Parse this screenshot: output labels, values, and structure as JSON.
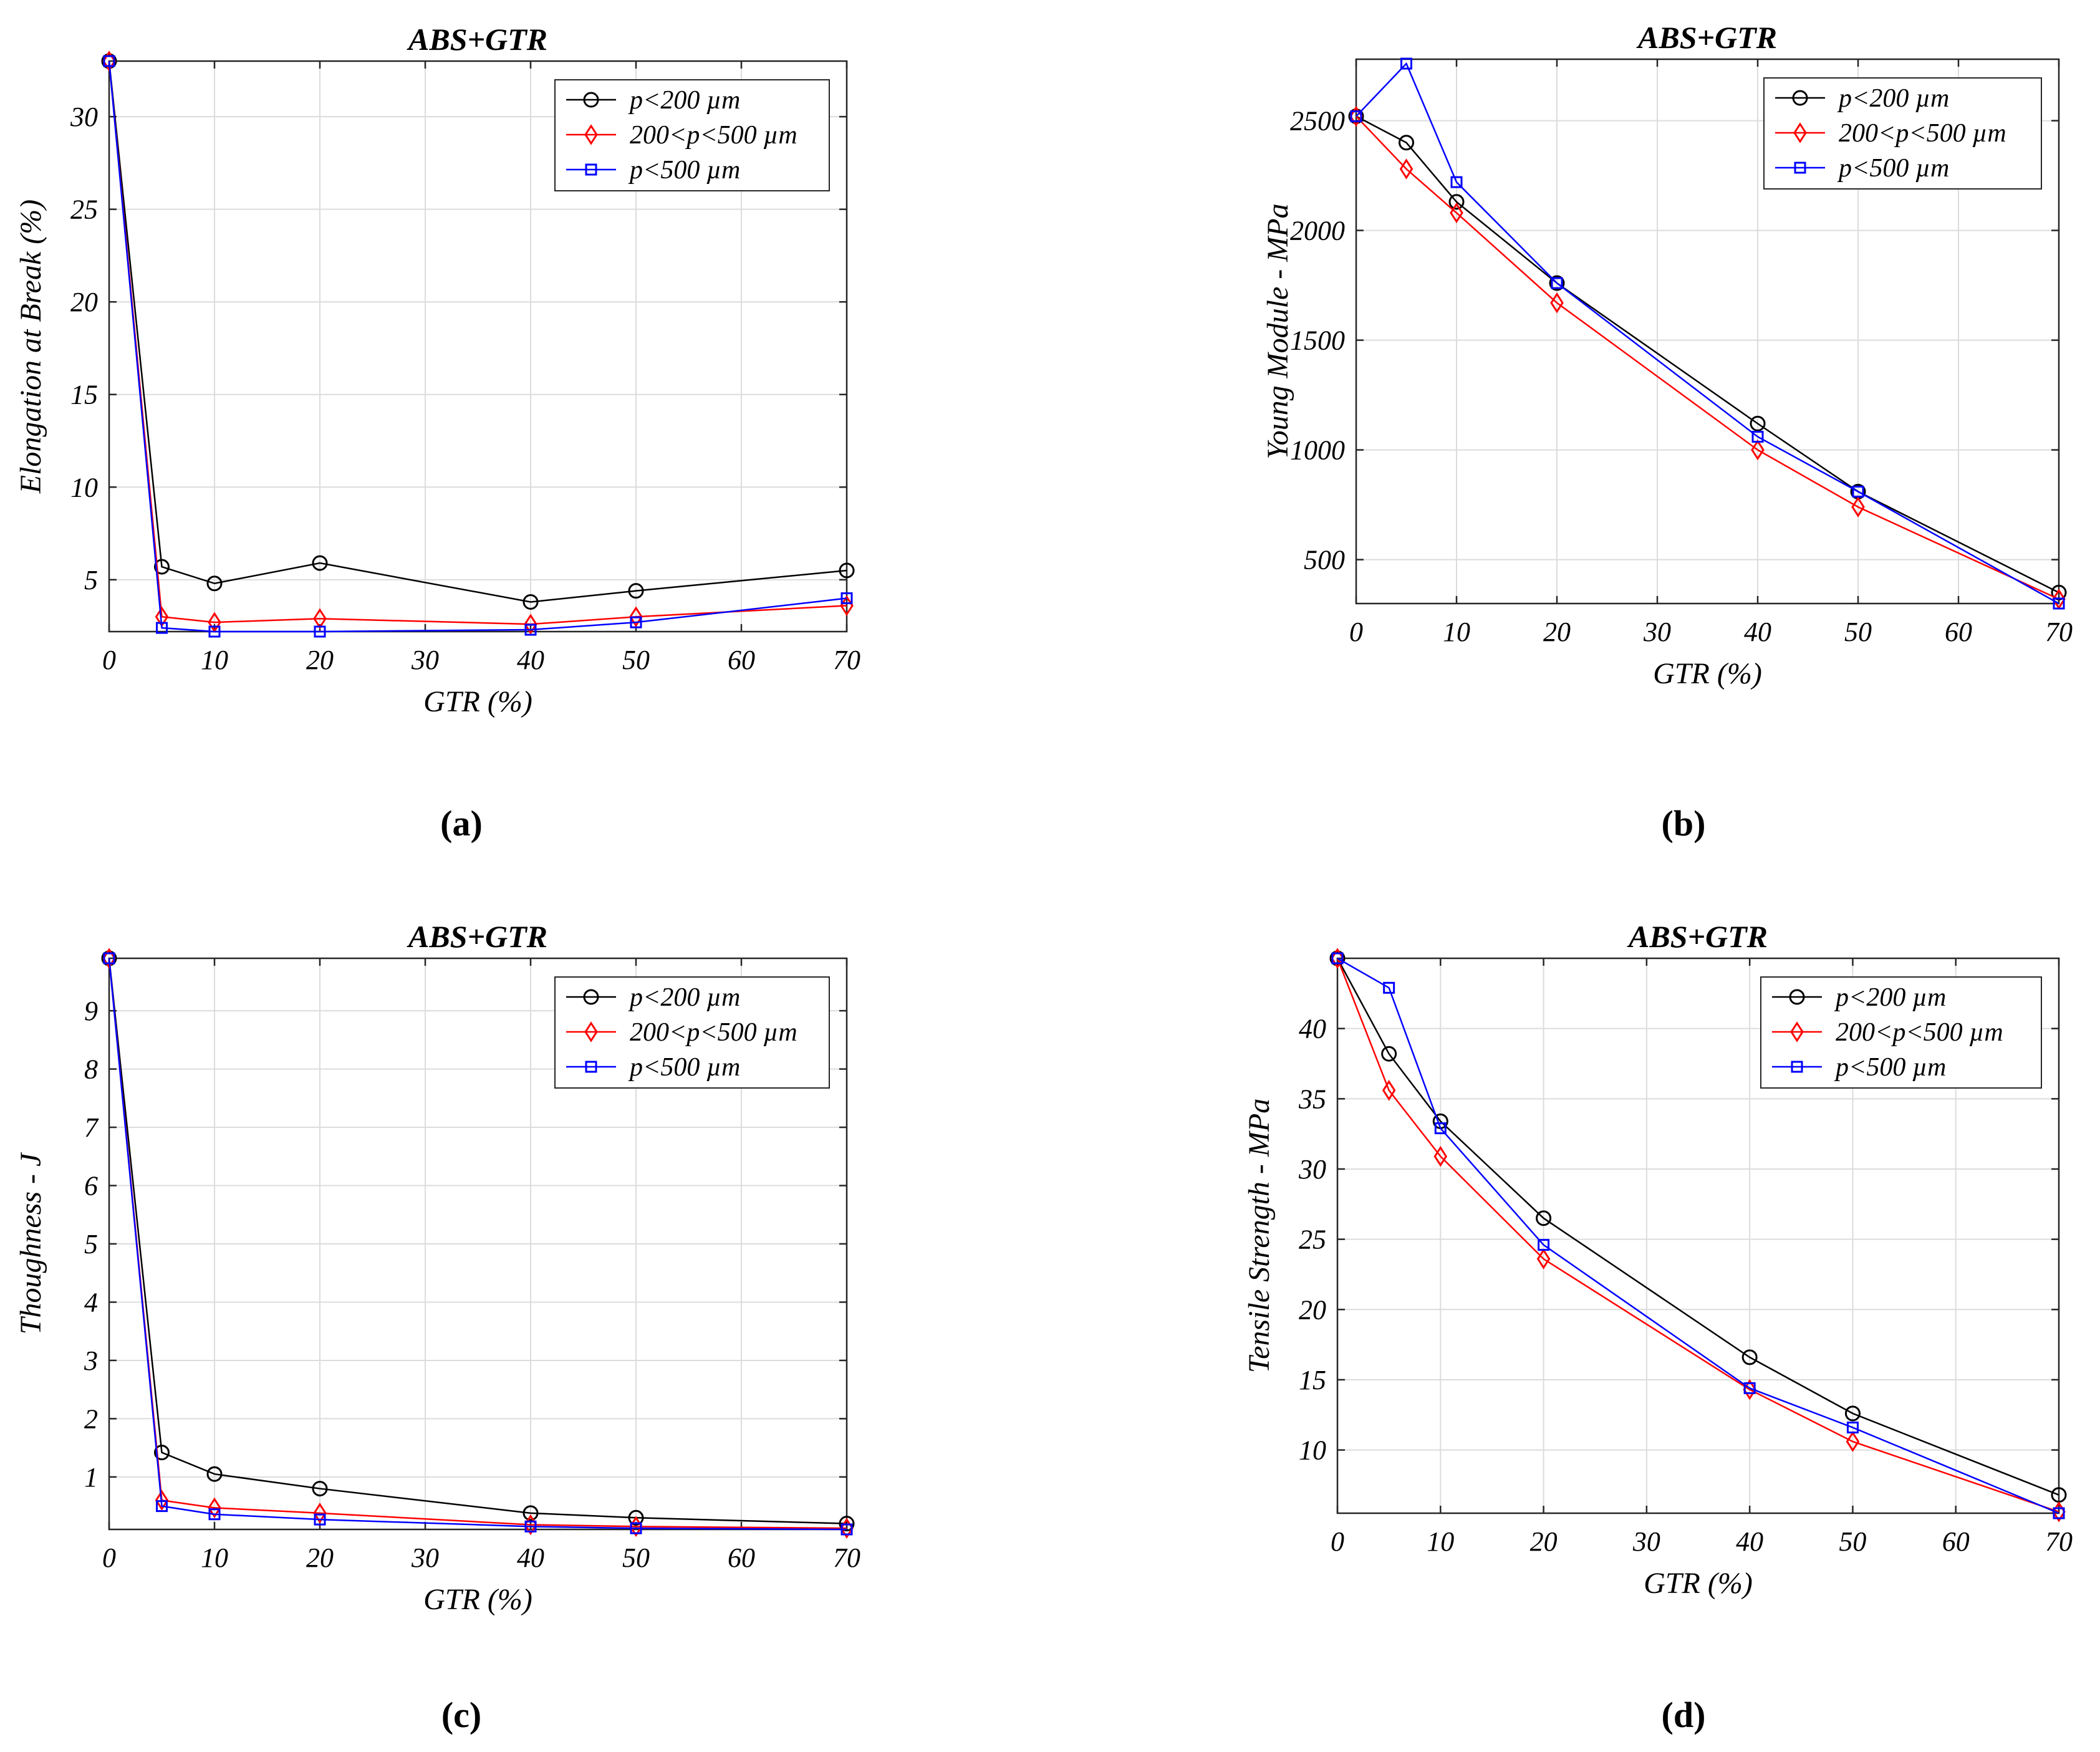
{
  "chart_data": [
    {
      "type": "line",
      "title": "ABS+GTR",
      "xlabel": "GTR (%)",
      "ylabel": "Elongation at Break (%)",
      "xlim": [
        0,
        70
      ],
      "ylim": [
        2.2,
        33
      ],
      "xticks": [
        0,
        10,
        20,
        30,
        40,
        50,
        60,
        70
      ],
      "yticks": [
        5,
        10,
        15,
        20,
        25,
        30
      ],
      "grid": true,
      "legend_position": "top-right",
      "caption": "(a)",
      "x": [
        0,
        5,
        10,
        20,
        40,
        50,
        70
      ],
      "series": [
        {
          "name": "p<200 µm",
          "marker": "circle",
          "color": "#000000",
          "values": [
            33,
            5.7,
            4.8,
            5.9,
            3.8,
            4.4,
            5.5
          ]
        },
        {
          "name": "200<p<500 µm",
          "marker": "diamond",
          "color": "#ff0000",
          "values": [
            33,
            3.0,
            2.7,
            2.9,
            2.6,
            3.0,
            3.6
          ]
        },
        {
          "name": "p<500 µm",
          "marker": "square",
          "color": "#0000ff",
          "values": [
            33,
            2.4,
            2.2,
            2.2,
            2.3,
            2.7,
            4.0
          ]
        }
      ]
    },
    {
      "type": "line",
      "title": "ABS+GTR",
      "xlabel": "GTR (%)",
      "ylabel": "Young Module - MPa",
      "xlim": [
        0,
        70
      ],
      "ylim": [
        300,
        2780
      ],
      "xticks": [
        0,
        10,
        20,
        30,
        40,
        50,
        60,
        70
      ],
      "yticks": [
        500,
        1000,
        1500,
        2000,
        2500
      ],
      "grid": true,
      "legend_position": "top-right",
      "caption": "(b)",
      "x": [
        0,
        5,
        10,
        20,
        40,
        50,
        70
      ],
      "series": [
        {
          "name": "p<200 µm",
          "marker": "circle",
          "color": "#000000",
          "values": [
            2520,
            2400,
            2130,
            1760,
            1120,
            810,
            350
          ]
        },
        {
          "name": "200<p<500 µm",
          "marker": "diamond",
          "color": "#ff0000",
          "values": [
            2520,
            2280,
            2080,
            1670,
            1000,
            740,
            320
          ]
        },
        {
          "name": "p<500 µm",
          "marker": "square",
          "color": "#0000ff",
          "values": [
            2520,
            2760,
            2220,
            1760,
            1060,
            810,
            300
          ]
        }
      ]
    },
    {
      "type": "line",
      "title": "ABS+GTR",
      "xlabel": "GTR (%)",
      "ylabel": "Thoughness - J",
      "xlim": [
        0,
        70
      ],
      "ylim": [
        0.1,
        9.9
      ],
      "xticks": [
        0,
        10,
        20,
        30,
        40,
        50,
        60,
        70
      ],
      "yticks": [
        1,
        2,
        3,
        4,
        5,
        6,
        7,
        8,
        9
      ],
      "grid": true,
      "legend_position": "top-right",
      "caption": "(c)",
      "x": [
        0,
        5,
        10,
        20,
        40,
        50,
        70
      ],
      "series": [
        {
          "name": "p<200 µm",
          "marker": "circle",
          "color": "#000000",
          "values": [
            9.9,
            1.42,
            1.05,
            0.8,
            0.38,
            0.3,
            0.2
          ]
        },
        {
          "name": "200<p<500 µm",
          "marker": "diamond",
          "color": "#ff0000",
          "values": [
            9.9,
            0.6,
            0.47,
            0.38,
            0.18,
            0.15,
            0.12
          ]
        },
        {
          "name": "p<500 µm",
          "marker": "square",
          "color": "#0000ff",
          "values": [
            9.9,
            0.5,
            0.36,
            0.27,
            0.15,
            0.12,
            0.1
          ]
        }
      ]
    },
    {
      "type": "line",
      "title": "ABS+GTR",
      "xlabel": "GTR (%)",
      "ylabel": "Tensile Strength - MPa",
      "xlim": [
        0,
        70
      ],
      "ylim": [
        5.5,
        45
      ],
      "xticks": [
        0,
        10,
        20,
        30,
        40,
        50,
        60,
        70
      ],
      "yticks": [
        10,
        15,
        20,
        25,
        30,
        35,
        40
      ],
      "grid": true,
      "legend_position": "top-right",
      "caption": "(d)",
      "x": [
        0,
        5,
        10,
        20,
        40,
        50,
        70
      ],
      "series": [
        {
          "name": "p<200 µm",
          "marker": "circle",
          "color": "#000000",
          "values": [
            45,
            38.2,
            33.4,
            26.5,
            16.6,
            12.6,
            6.8
          ]
        },
        {
          "name": "200<p<500 µm",
          "marker": "diamond",
          "color": "#ff0000",
          "values": [
            45,
            35.6,
            30.9,
            23.6,
            14.3,
            10.6,
            5.6
          ]
        },
        {
          "name": "p<500 µm",
          "marker": "square",
          "color": "#0000ff",
          "values": [
            45,
            42.9,
            32.9,
            24.6,
            14.4,
            11.6,
            5.5
          ]
        }
      ]
    }
  ]
}
